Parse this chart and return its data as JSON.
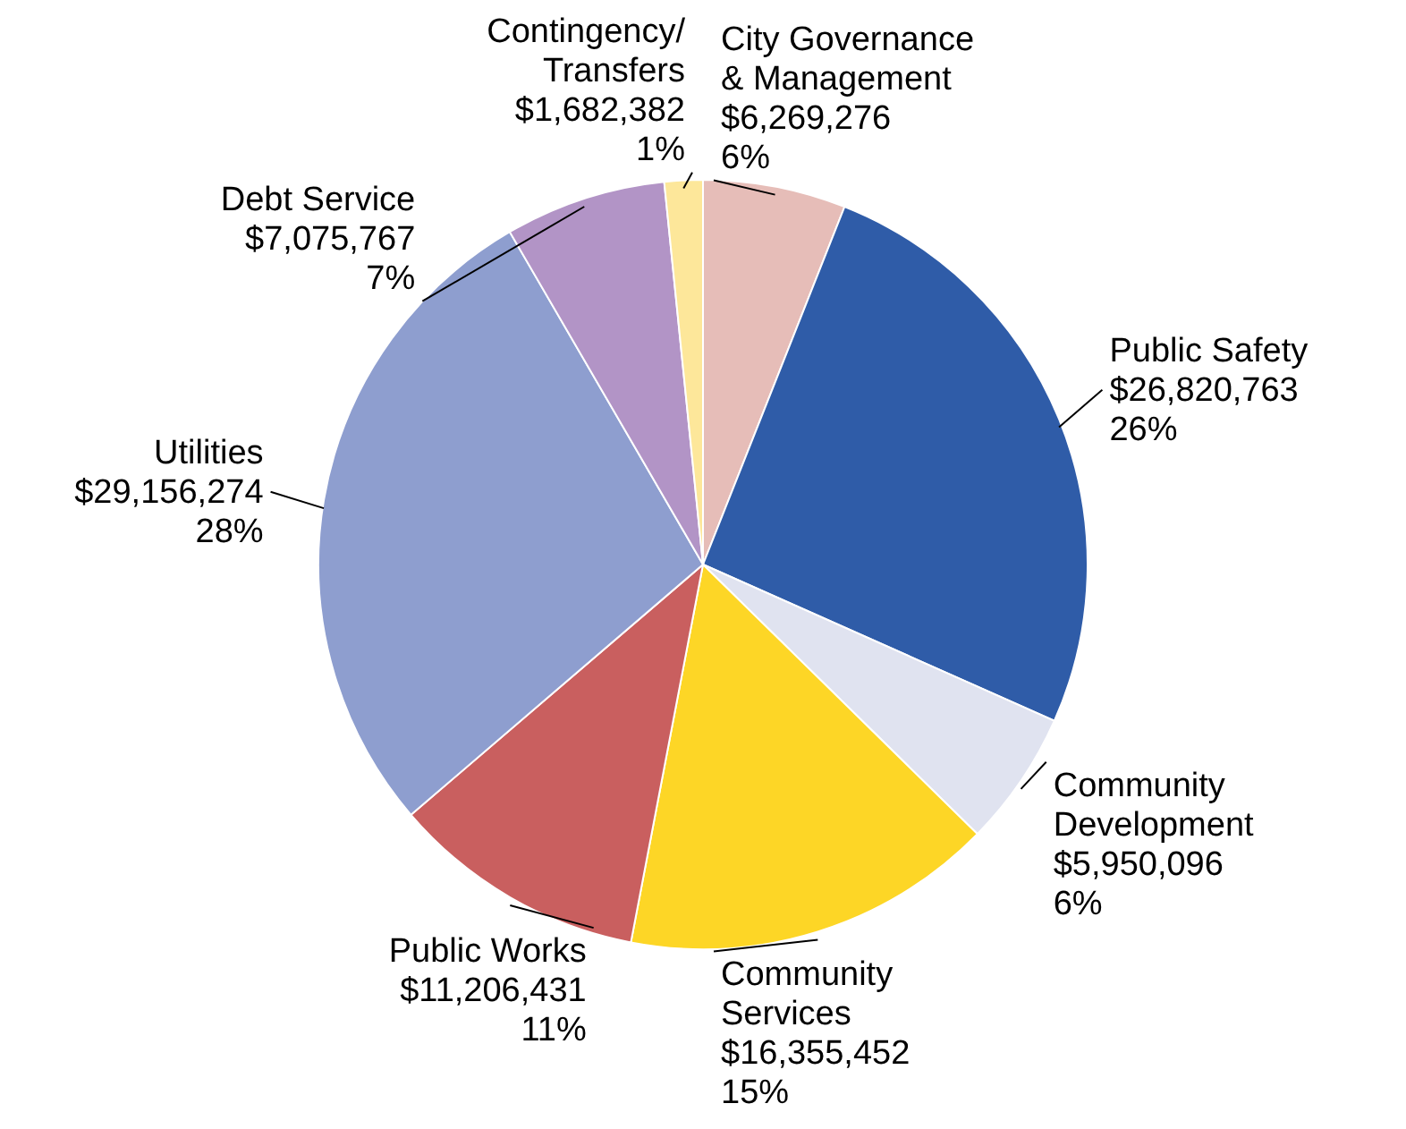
{
  "chart_data": {
    "type": "pie",
    "categories": [
      "City Governance & Management",
      "Public Safety",
      "Community Development",
      "Community Services",
      "Public Works",
      "Utilities",
      "Debt Service",
      "Contingency/Transfers"
    ],
    "values": [
      6269276,
      26820763,
      5950096,
      16355452,
      11206431,
      29156274,
      7075767,
      1682382
    ],
    "value_labels": [
      "$6,269,276\n6%",
      "$26,820,763\n26%",
      "$5,950,096\n6%",
      "$16,355,452\n15%",
      "$11,206,431\n11%",
      "$29,156,274\n28%",
      "$7,075,767\n7%",
      "$1,682,382\n1%"
    ],
    "colors": [
      "#e6bdb8",
      "#2f5ca8",
      "#e0e3f0",
      "#fdd626",
      "#c95f5f",
      "#8e9ecf",
      "#b294c6",
      "#fde79a"
    ]
  }
}
